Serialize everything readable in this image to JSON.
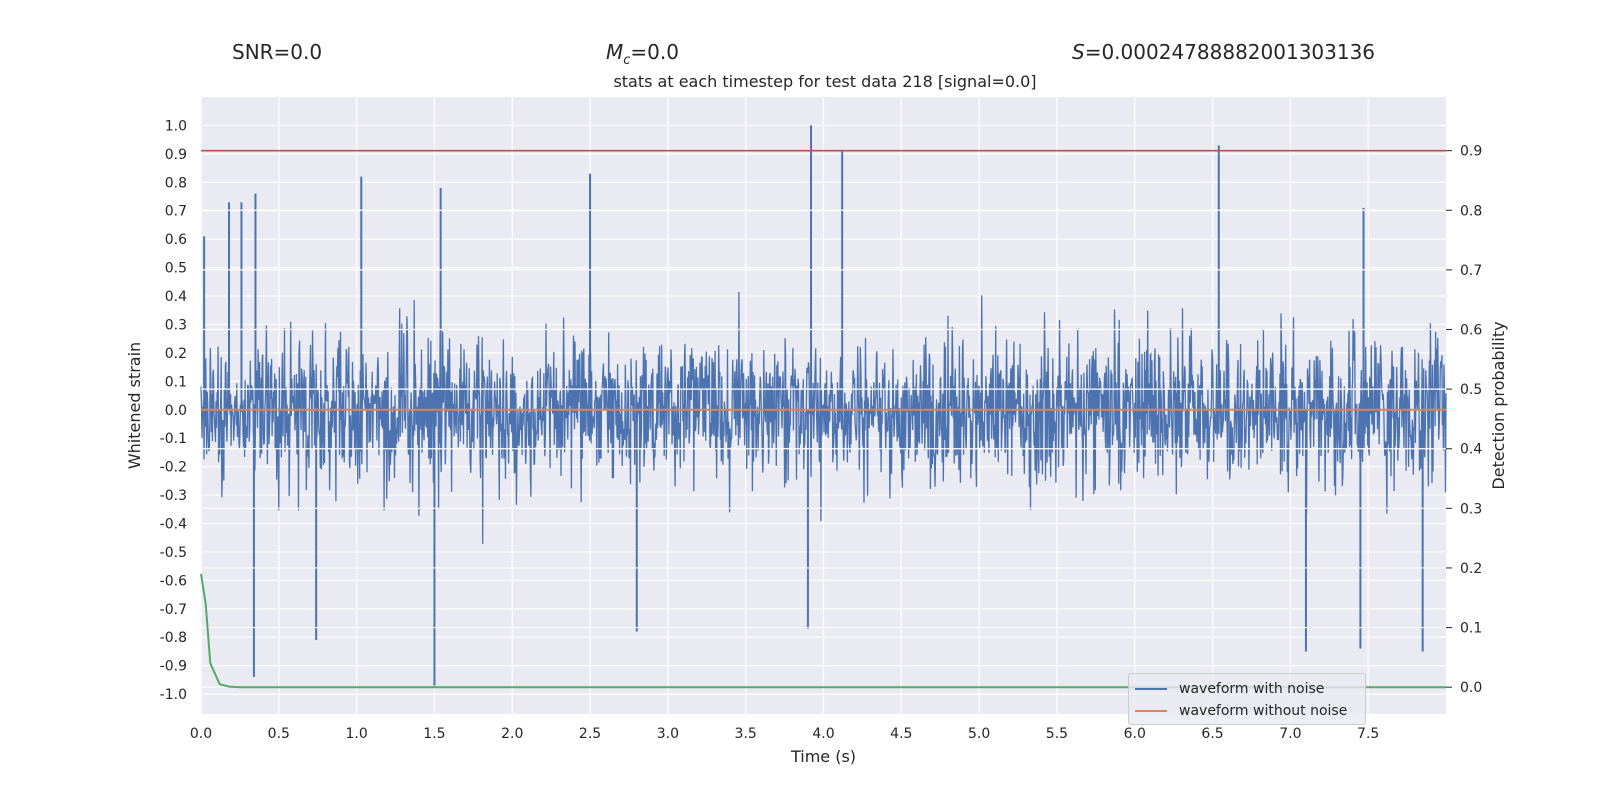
{
  "header": {
    "snr": "SNR=0.0",
    "mc_symbol": "M",
    "mc_sub": "c",
    "mc_value": "=0.0",
    "s_symbol": "S",
    "s_value": "=0.00024788882001303136"
  },
  "chart_data": {
    "type": "line",
    "title": "stats at each timestep for test data 218 [signal=0.0]",
    "xlabel": "Time (s)",
    "ylabel_left": "Whitened strain",
    "ylabel_right": "Detection probability",
    "xlim": [
      0.0,
      8.0
    ],
    "ylim_left": [
      -1.07,
      1.1
    ],
    "ylim_right": [
      -0.045,
      0.99
    ],
    "x_ticks": [
      "0.0",
      "0.5",
      "1.0",
      "1.5",
      "2.0",
      "2.5",
      "3.0",
      "3.5",
      "4.0",
      "4.5",
      "5.0",
      "5.5",
      "6.0",
      "6.5",
      "7.0",
      "7.5"
    ],
    "y_ticks_left": [
      "1.0",
      "0.9",
      "0.8",
      "0.7",
      "0.6",
      "0.5",
      "0.4",
      "0.3",
      "0.2",
      "0.1",
      "0.0",
      "-0.1",
      "-0.2",
      "-0.3",
      "-0.4",
      "-0.5",
      "-0.6",
      "-0.7",
      "-0.8",
      "-0.9",
      "-1.0"
    ],
    "y_ticks_right": [
      "0.9",
      "0.8",
      "0.7",
      "0.6",
      "0.5",
      "0.4",
      "0.3",
      "0.2",
      "0.1",
      "0.0"
    ],
    "series": [
      {
        "name": "waveform with noise",
        "color": "#4c72b0",
        "axis": "left",
        "description": "dense noisy waveform, mostly within [-0.5, 0.6]",
        "peaks": [
          [
            0.02,
            0.61
          ],
          [
            0.18,
            0.73
          ],
          [
            0.26,
            0.73
          ],
          [
            0.35,
            0.76
          ],
          [
            1.03,
            0.82
          ],
          [
            1.54,
            0.78
          ],
          [
            2.5,
            0.83
          ],
          [
            3.92,
            1.0
          ],
          [
            4.12,
            0.91
          ],
          [
            6.54,
            0.93
          ],
          [
            7.47,
            0.71
          ]
        ],
        "troughs": [
          [
            0.34,
            -0.94
          ],
          [
            0.74,
            -0.81
          ],
          [
            1.5,
            -0.97
          ],
          [
            2.8,
            -0.78
          ],
          [
            3.9,
            -0.77
          ],
          [
            7.1,
            -0.85
          ],
          [
            7.45,
            -0.84
          ],
          [
            7.85,
            -0.85
          ]
        ]
      },
      {
        "name": "waveform without noise",
        "color": "#dd8452",
        "axis": "left",
        "x": [
          0.0,
          8.0
        ],
        "y": [
          0.0,
          0.0
        ]
      },
      {
        "name": "detection probability",
        "color": "#55a868",
        "axis": "right",
        "x": [
          0.0,
          0.03,
          0.06,
          0.12,
          0.18,
          0.25,
          1.0,
          4.6,
          8.0
        ],
        "y": [
          0.19,
          0.14,
          0.04,
          0.005,
          0.001,
          0.0,
          0.0,
          0.0,
          0.0
        ]
      },
      {
        "name": "threshold",
        "color": "#c44e52",
        "axis": "right",
        "x": [
          0.0,
          8.0
        ],
        "y": [
          0.9,
          0.9
        ]
      }
    ],
    "legend": {
      "position": "bottom-right",
      "entries": [
        "waveform with noise",
        "waveform without noise"
      ]
    }
  }
}
